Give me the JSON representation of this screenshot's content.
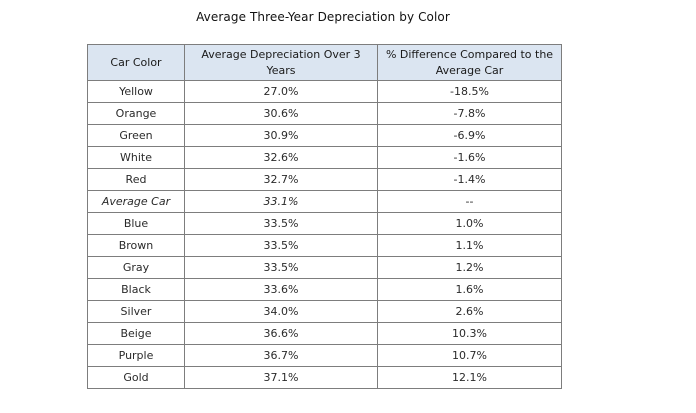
{
  "chart_data": {
    "type": "table",
    "title": "Average Three-Year Depreciation by Color",
    "columns": [
      "Car Color",
      "Average Depreciation Over 3 Years",
      "% Difference Compared to the Average Car"
    ],
    "rows": [
      {
        "color": "Yellow",
        "depreciation": "27.0%",
        "difference": "-18.5%",
        "italic": false
      },
      {
        "color": "Orange",
        "depreciation": "30.6%",
        "difference": "-7.8%",
        "italic": false
      },
      {
        "color": "Green",
        "depreciation": "30.9%",
        "difference": "-6.9%",
        "italic": false
      },
      {
        "color": "White",
        "depreciation": "32.6%",
        "difference": "-1.6%",
        "italic": false
      },
      {
        "color": "Red",
        "depreciation": "32.7%",
        "difference": "-1.4%",
        "italic": false
      },
      {
        "color": "Average Car",
        "depreciation": "33.1%",
        "difference": "--",
        "italic": true
      },
      {
        "color": "Blue",
        "depreciation": "33.5%",
        "difference": "1.0%",
        "italic": false
      },
      {
        "color": "Brown",
        "depreciation": "33.5%",
        "difference": "1.1%",
        "italic": false
      },
      {
        "color": "Gray",
        "depreciation": "33.5%",
        "difference": "1.2%",
        "italic": false
      },
      {
        "color": "Black",
        "depreciation": "33.6%",
        "difference": "1.6%",
        "italic": false
      },
      {
        "color": "Silver",
        "depreciation": "34.0%",
        "difference": "2.6%",
        "italic": false
      },
      {
        "color": "Beige",
        "depreciation": "36.6%",
        "difference": "10.3%",
        "italic": false
      },
      {
        "color": "Purple",
        "depreciation": "36.7%",
        "difference": "10.7%",
        "italic": false
      },
      {
        "color": "Gold",
        "depreciation": "37.1%",
        "difference": "12.1%",
        "italic": false
      }
    ],
    "header_background": "#dbe5f1",
    "border_color": "#7d7d7d"
  }
}
